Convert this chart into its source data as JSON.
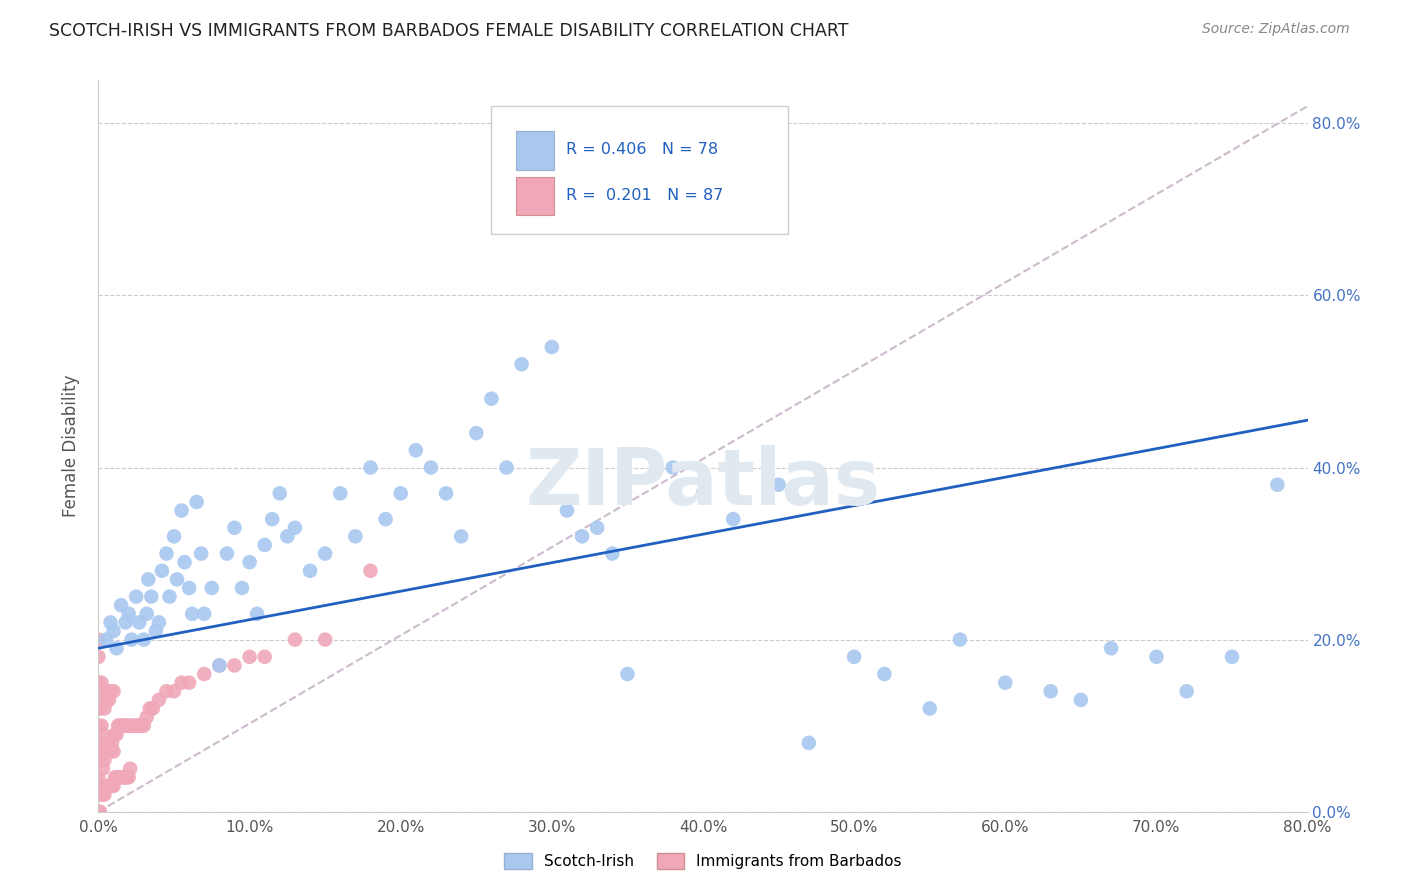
{
  "title": "SCOTCH-IRISH VS IMMIGRANTS FROM BARBADOS FEMALE DISABILITY CORRELATION CHART",
  "source": "Source: ZipAtlas.com",
  "ylabel": "Female Disability",
  "x_min": 0.0,
  "x_max": 0.8,
  "y_min": 0.0,
  "y_max": 0.85,
  "x_ticks": [
    0.0,
    0.1,
    0.2,
    0.3,
    0.4,
    0.5,
    0.6,
    0.7,
    0.8
  ],
  "y_ticks": [
    0.0,
    0.2,
    0.4,
    0.6,
    0.8
  ],
  "scotch_irish_color": "#a8c8f0",
  "barbados_color": "#f0a8b8",
  "trendline_blue_color": "#2060c0",
  "trendline_gray_color": "#ccbbcc",
  "R1": 0.406,
  "N1": 78,
  "R2": 0.201,
  "N2": 87,
  "legend_label1": "Scotch-Irish",
  "legend_label2": "Immigrants from Barbados",
  "blue_line_x0": 0.0,
  "blue_line_y0": 0.19,
  "blue_line_x1": 0.8,
  "blue_line_y1": 0.455,
  "gray_line_x0": 0.0,
  "gray_line_y0": 0.0,
  "gray_line_x1": 0.8,
  "gray_line_y1": 0.82,
  "scotch_irish_x": [
    0.005,
    0.008,
    0.01,
    0.012,
    0.015,
    0.018,
    0.02,
    0.022,
    0.025,
    0.027,
    0.03,
    0.032,
    0.033,
    0.035,
    0.038,
    0.04,
    0.042,
    0.045,
    0.047,
    0.05,
    0.052,
    0.055,
    0.057,
    0.06,
    0.062,
    0.065,
    0.068,
    0.07,
    0.075,
    0.08,
    0.085,
    0.09,
    0.095,
    0.1,
    0.105,
    0.11,
    0.115,
    0.12,
    0.125,
    0.13,
    0.14,
    0.15,
    0.16,
    0.17,
    0.18,
    0.19,
    0.2,
    0.21,
    0.22,
    0.23,
    0.24,
    0.25,
    0.26,
    0.27,
    0.28,
    0.3,
    0.31,
    0.32,
    0.33,
    0.34,
    0.35,
    0.38,
    0.4,
    0.42,
    0.45,
    0.47,
    0.5,
    0.52,
    0.55,
    0.57,
    0.6,
    0.63,
    0.65,
    0.67,
    0.7,
    0.72,
    0.75,
    0.78
  ],
  "scotch_irish_y": [
    0.2,
    0.22,
    0.21,
    0.19,
    0.24,
    0.22,
    0.23,
    0.2,
    0.25,
    0.22,
    0.2,
    0.23,
    0.27,
    0.25,
    0.21,
    0.22,
    0.28,
    0.3,
    0.25,
    0.32,
    0.27,
    0.35,
    0.29,
    0.26,
    0.23,
    0.36,
    0.3,
    0.23,
    0.26,
    0.17,
    0.3,
    0.33,
    0.26,
    0.29,
    0.23,
    0.31,
    0.34,
    0.37,
    0.32,
    0.33,
    0.28,
    0.3,
    0.37,
    0.32,
    0.4,
    0.34,
    0.37,
    0.42,
    0.4,
    0.37,
    0.32,
    0.44,
    0.48,
    0.4,
    0.52,
    0.54,
    0.35,
    0.32,
    0.33,
    0.3,
    0.16,
    0.4,
    0.37,
    0.34,
    0.38,
    0.08,
    0.18,
    0.16,
    0.12,
    0.2,
    0.15,
    0.14,
    0.13,
    0.19,
    0.18,
    0.14,
    0.18,
    0.38
  ],
  "barbados_x": [
    0.0,
    0.0,
    0.0,
    0.0,
    0.0,
    0.0,
    0.0,
    0.0,
    0.0,
    0.0,
    0.001,
    0.001,
    0.001,
    0.001,
    0.002,
    0.002,
    0.002,
    0.002,
    0.003,
    0.003,
    0.003,
    0.003,
    0.004,
    0.004,
    0.004,
    0.005,
    0.005,
    0.005,
    0.006,
    0.006,
    0.006,
    0.007,
    0.007,
    0.007,
    0.008,
    0.008,
    0.008,
    0.009,
    0.009,
    0.01,
    0.01,
    0.01,
    0.011,
    0.011,
    0.012,
    0.012,
    0.013,
    0.013,
    0.014,
    0.014,
    0.015,
    0.015,
    0.016,
    0.016,
    0.017,
    0.017,
    0.018,
    0.018,
    0.019,
    0.019,
    0.02,
    0.02,
    0.021,
    0.022,
    0.023,
    0.024,
    0.025,
    0.026,
    0.027,
    0.028,
    0.03,
    0.032,
    0.034,
    0.036,
    0.04,
    0.045,
    0.05,
    0.055,
    0.06,
    0.07,
    0.08,
    0.09,
    0.1,
    0.11,
    0.13,
    0.15,
    0.18
  ],
  "barbados_y": [
    0.0,
    0.02,
    0.04,
    0.06,
    0.08,
    0.1,
    0.12,
    0.15,
    0.18,
    0.2,
    0.0,
    0.03,
    0.07,
    0.12,
    0.02,
    0.06,
    0.1,
    0.15,
    0.02,
    0.05,
    0.09,
    0.14,
    0.02,
    0.06,
    0.12,
    0.03,
    0.07,
    0.13,
    0.03,
    0.08,
    0.14,
    0.03,
    0.07,
    0.13,
    0.03,
    0.07,
    0.14,
    0.03,
    0.08,
    0.03,
    0.07,
    0.14,
    0.04,
    0.09,
    0.04,
    0.09,
    0.04,
    0.1,
    0.04,
    0.1,
    0.04,
    0.1,
    0.04,
    0.1,
    0.04,
    0.1,
    0.04,
    0.1,
    0.04,
    0.1,
    0.04,
    0.1,
    0.05,
    0.1,
    0.1,
    0.1,
    0.1,
    0.1,
    0.1,
    0.1,
    0.1,
    0.11,
    0.12,
    0.12,
    0.13,
    0.14,
    0.14,
    0.15,
    0.15,
    0.16,
    0.17,
    0.17,
    0.18,
    0.18,
    0.2,
    0.2,
    0.28
  ]
}
